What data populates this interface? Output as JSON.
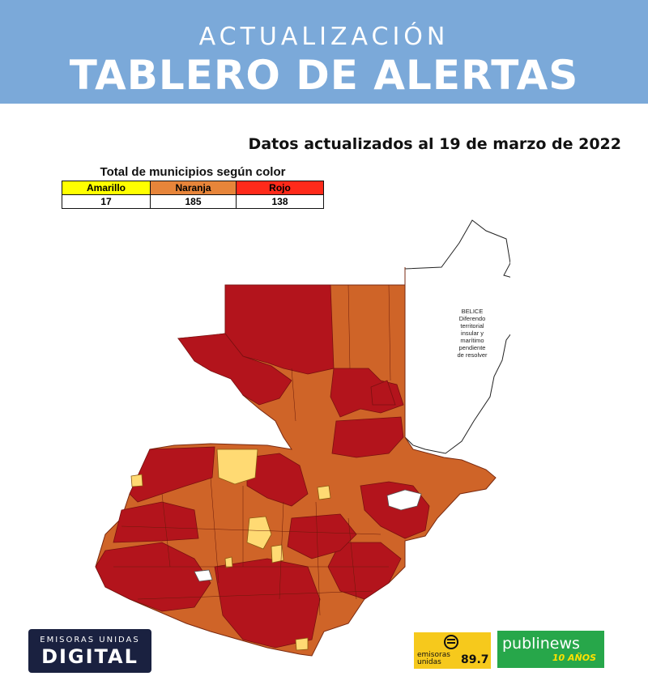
{
  "header": {
    "kicker": "ACTUALIZACIÓN",
    "title": "TABLERO DE ALERTAS",
    "bg_color": "#7ba9d9"
  },
  "date_text": "Datos actualizados al 19 de marzo de 2022",
  "summary_table": {
    "title": "Total de municipios según color",
    "columns": [
      {
        "label": "Amarillo",
        "value": "17",
        "color": "#ffff00"
      },
      {
        "label": "Naranja",
        "value": "185",
        "color": "#e7853a"
      },
      {
        "label": "Rojo",
        "value": "138",
        "color": "#ff2a1a"
      }
    ]
  },
  "map": {
    "legend_colors": {
      "rojo": "#b3141c",
      "naranja": "#cf6428",
      "amarillo": "#ffda73"
    },
    "belize_label": [
      "BELICE",
      "Diferendo",
      "territorial",
      "insular y",
      "marítimo",
      "pendiente",
      "de resolver"
    ]
  },
  "logos": {
    "left": {
      "line1": "EMISORAS UNIDAS",
      "line2": "DIGITAL"
    },
    "middle": {
      "line1": "emisoras",
      "line2": "unidas",
      "freq": "89.7"
    },
    "right": {
      "name": "publinews",
      "tag": "10 AÑOS"
    }
  }
}
